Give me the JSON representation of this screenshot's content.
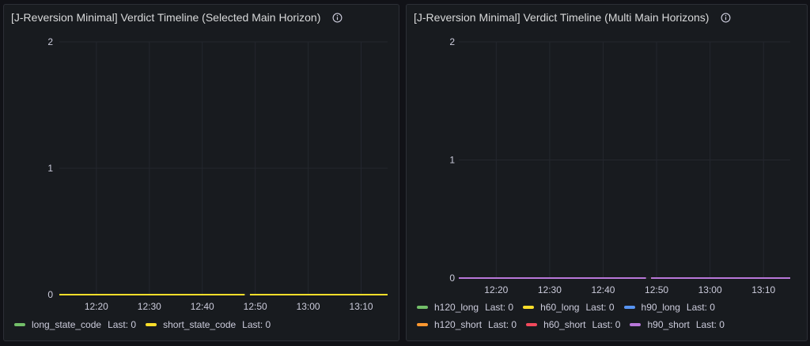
{
  "panels": [
    {
      "title": "[J-Reversion Minimal] Verdict Timeline (Selected Main Horizon)",
      "legend": [
        {
          "name": "long_state_code",
          "last": "Last: 0",
          "color": "#73bf69"
        },
        {
          "name": "short_state_code",
          "last": "Last: 0",
          "color": "#fade2a"
        }
      ]
    },
    {
      "title": "[J-Reversion Minimal] Verdict Timeline (Multi Main Horizons)",
      "legend": [
        {
          "name": "h120_long",
          "last": "Last: 0",
          "color": "#73bf69"
        },
        {
          "name": "h60_long",
          "last": "Last: 0",
          "color": "#fade2a"
        },
        {
          "name": "h90_long",
          "last": "Last: 0",
          "color": "#5794f2"
        },
        {
          "name": "h120_short",
          "last": "Last: 0",
          "color": "#ff9830"
        },
        {
          "name": "h60_short",
          "last": "Last: 0",
          "color": "#f2495c"
        },
        {
          "name": "h90_short",
          "last": "Last: 0",
          "color": "#b877d9"
        }
      ]
    }
  ],
  "chart_data": [
    {
      "type": "line",
      "title": "[J-Reversion Minimal] Verdict Timeline (Selected Main Horizon)",
      "x_ticks": [
        "12:20",
        "12:30",
        "12:40",
        "12:50",
        "13:00",
        "13:10"
      ],
      "y_ticks": [
        "0",
        "1",
        "2"
      ],
      "ylim": [
        0,
        2
      ],
      "xlim": [
        "12:13",
        "13:15"
      ],
      "gap": [
        "12:48",
        "12:49"
      ],
      "series": [
        {
          "name": "long_state_code",
          "color": "#73bf69",
          "values": [
            0,
            0
          ]
        },
        {
          "name": "short_state_code",
          "color": "#fade2a",
          "values": [
            0,
            0
          ]
        }
      ],
      "grid": true,
      "legend": "bottom"
    },
    {
      "type": "line",
      "title": "[J-Reversion Minimal] Verdict Timeline (Multi Main Horizons)",
      "x_ticks": [
        "12:20",
        "12:30",
        "12:40",
        "12:50",
        "13:00",
        "13:10"
      ],
      "y_ticks": [
        "0",
        "1",
        "2"
      ],
      "ylim": [
        0,
        2
      ],
      "xlim": [
        "12:13",
        "13:15"
      ],
      "gap": [
        "12:48",
        "12:49"
      ],
      "series": [
        {
          "name": "h120_long",
          "color": "#73bf69",
          "values": [
            0,
            0
          ]
        },
        {
          "name": "h60_long",
          "color": "#fade2a",
          "values": [
            0,
            0
          ]
        },
        {
          "name": "h90_long",
          "color": "#5794f2",
          "values": [
            0,
            0
          ]
        },
        {
          "name": "h120_short",
          "color": "#ff9830",
          "values": [
            0,
            0
          ]
        },
        {
          "name": "h60_short",
          "color": "#f2495c",
          "values": [
            0,
            0
          ]
        },
        {
          "name": "h90_short",
          "color": "#b877d9",
          "values": [
            0,
            0
          ]
        }
      ],
      "grid": true,
      "legend": "bottom"
    }
  ]
}
